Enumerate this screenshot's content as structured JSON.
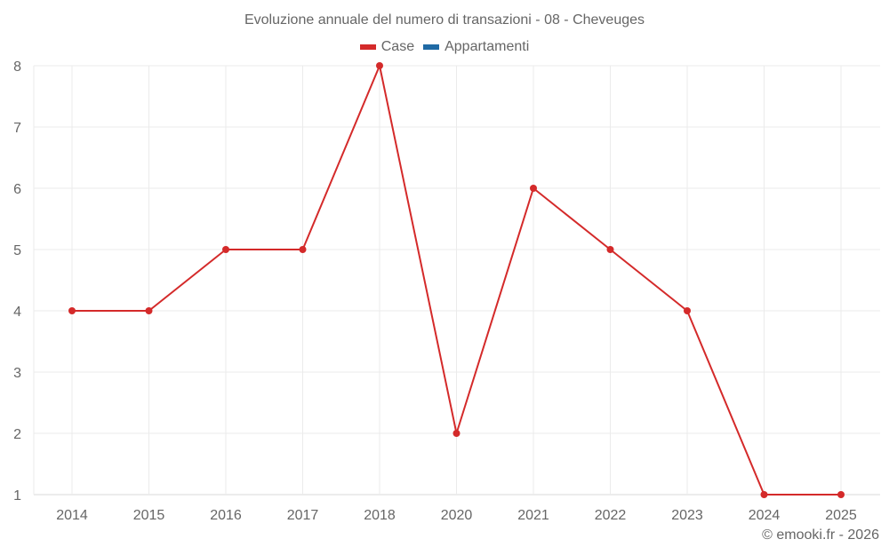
{
  "title": "Evoluzione annuale del numero di transazioni - 08 - Cheveuges",
  "legend": [
    {
      "label": "Case",
      "color": "#d42a2a"
    },
    {
      "label": "Appartamenti",
      "color": "#1f6aa5"
    }
  ],
  "credit": "© emooki.fr - 2026",
  "chart_data": {
    "type": "line",
    "title": "Evoluzione annuale del numero di transazioni - 08 - Cheveuges",
    "xlabel": "",
    "ylabel": "",
    "categories": [
      "2014",
      "2015",
      "2016",
      "2017",
      "2018",
      "2020",
      "2021",
      "2022",
      "2023",
      "2024",
      "2025"
    ],
    "series": [
      {
        "name": "Case",
        "color": "#d42a2a",
        "values": [
          4,
          4,
          5,
          5,
          8,
          2,
          6,
          5,
          4,
          1,
          1
        ]
      },
      {
        "name": "Appartamenti",
        "color": "#1f6aa5",
        "values": []
      }
    ],
    "ylim": [
      1,
      8
    ],
    "yticks": [
      1,
      2,
      3,
      4,
      5,
      6,
      7,
      8
    ],
    "grid": true,
    "legend_position": "top"
  }
}
